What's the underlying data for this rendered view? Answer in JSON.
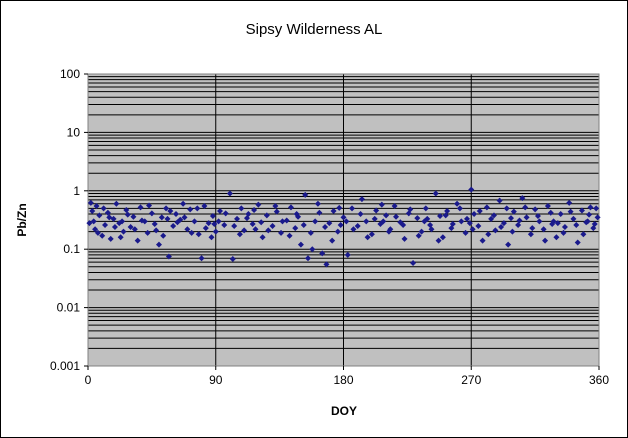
{
  "chart_data": {
    "type": "scatter",
    "title": "Sipsy Wilderness AL",
    "xlabel": "DOY",
    "ylabel": "Pb/Zn",
    "xlim": [
      0,
      360
    ],
    "ylim": [
      0.001,
      100
    ],
    "yscale": "log",
    "x_ticks": [
      "0",
      "90",
      "180",
      "270",
      "360"
    ],
    "y_ticks": [
      "0.001",
      "0.01",
      "0.1",
      "1",
      "10",
      "100"
    ],
    "grid": true,
    "legend": "none",
    "colors": {
      "marker": "#1a1a8c",
      "plot_background": "#c0c0c0",
      "gridline": "#000000"
    },
    "series": [
      {
        "points": [
          [
            2,
            0.62
          ],
          [
            3,
            0.45
          ],
          [
            4,
            0.3
          ],
          [
            5,
            0.22
          ],
          [
            6,
            0.55
          ],
          [
            8,
            0.38
          ],
          [
            10,
            0.17
          ],
          [
            12,
            0.26
          ],
          [
            14,
            0.42
          ],
          [
            16,
            0.15
          ],
          [
            18,
            0.33
          ],
          [
            20,
            0.6
          ],
          [
            22,
            0.28
          ],
          [
            25,
            0.2
          ],
          [
            27,
            0.47
          ],
          [
            30,
            0.24
          ],
          [
            32,
            0.36
          ],
          [
            35,
            0.14
          ],
          [
            37,
            0.52
          ],
          [
            40,
            0.3
          ],
          [
            42,
            0.19
          ],
          [
            45,
            0.41
          ],
          [
            47,
            0.27
          ],
          [
            50,
            0.12
          ],
          [
            52,
            0.35
          ],
          [
            55,
            0.5
          ],
          [
            57,
            0.075
          ],
          [
            60,
            0.25
          ],
          [
            62,
            0.4
          ],
          [
            65,
            0.32
          ],
          [
            67,
            0.6
          ],
          [
            70,
            0.22
          ],
          [
            72,
            0.48
          ],
          [
            75,
            0.3
          ],
          [
            78,
            0.18
          ],
          [
            80,
            0.07
          ],
          [
            82,
            0.55
          ],
          [
            85,
            0.28
          ],
          [
            88,
            0.37
          ],
          [
            90,
            0.2
          ],
          [
            93,
            0.45
          ],
          [
            96,
            0.26
          ],
          [
            100,
            0.9
          ],
          [
            102,
            0.068
          ],
          [
            105,
            0.33
          ],
          [
            108,
            0.5
          ],
          [
            110,
            0.21
          ],
          [
            113,
            0.4
          ],
          [
            116,
            0.27
          ],
          [
            120,
            0.58
          ],
          [
            123,
            0.16
          ],
          [
            126,
            0.38
          ],
          [
            130,
            0.25
          ],
          [
            133,
            0.44
          ],
          [
            136,
            0.19
          ],
          [
            140,
            0.31
          ],
          [
            143,
            0.52
          ],
          [
            146,
            0.23
          ],
          [
            150,
            0.12
          ],
          [
            153,
            0.85
          ],
          [
            155,
            0.07
          ],
          [
            158,
            0.1
          ],
          [
            160,
            0.3
          ],
          [
            162,
            0.6
          ],
          [
            165,
            0.085
          ],
          [
            168,
            0.055
          ],
          [
            170,
            0.28
          ],
          [
            173,
            0.45
          ],
          [
            176,
            0.2
          ],
          [
            180,
            0.35
          ],
          [
            183,
            0.08
          ],
          [
            186,
            0.5
          ],
          [
            190,
            0.25
          ],
          [
            193,
            0.72
          ],
          [
            196,
            0.3
          ],
          [
            200,
            0.18
          ],
          [
            203,
            0.46
          ],
          [
            206,
            0.27
          ],
          [
            210,
            0.38
          ],
          [
            213,
            0.22
          ],
          [
            216,
            0.55
          ],
          [
            220,
            0.29
          ],
          [
            223,
            0.15
          ],
          [
            226,
            0.41
          ],
          [
            229,
            0.058
          ],
          [
            232,
            0.34
          ],
          [
            235,
            0.2
          ],
          [
            238,
            0.5
          ],
          [
            241,
            0.26
          ],
          [
            245,
            0.9
          ],
          [
            248,
            0.37
          ],
          [
            250,
            0.16
          ],
          [
            253,
            0.45
          ],
          [
            256,
            0.23
          ],
          [
            260,
            0.6
          ],
          [
            263,
            0.3
          ],
          [
            266,
            0.19
          ],
          [
            270,
            1.05
          ],
          [
            272,
            0.4
          ],
          [
            275,
            0.25
          ],
          [
            278,
            0.14
          ],
          [
            281,
            0.52
          ],
          [
            284,
            0.33
          ],
          [
            287,
            0.21
          ],
          [
            290,
            0.68
          ],
          [
            293,
            0.28
          ],
          [
            296,
            0.12
          ],
          [
            300,
            0.44
          ],
          [
            303,
            0.26
          ],
          [
            306,
            0.75
          ],
          [
            309,
            0.35
          ],
          [
            312,
            0.18
          ],
          [
            315,
            0.48
          ],
          [
            318,
            0.3
          ],
          [
            321,
            0.22
          ],
          [
            324,
            0.55
          ],
          [
            327,
            0.27
          ],
          [
            330,
            0.16
          ],
          [
            333,
            0.4
          ],
          [
            336,
            0.24
          ],
          [
            339,
            0.62
          ],
          [
            342,
            0.33
          ],
          [
            345,
            0.13
          ],
          [
            348,
            0.46
          ],
          [
            351,
            0.29
          ],
          [
            354,
            0.52
          ],
          [
            356,
            0.23
          ],
          [
            358,
            0.5
          ],
          [
            359,
            0.35
          ],
          [
            1,
            0.28
          ],
          [
            7,
            0.19
          ],
          [
            11,
            0.5
          ],
          [
            15,
            0.35
          ],
          [
            19,
            0.24
          ],
          [
            23,
            0.16
          ],
          [
            28,
            0.39
          ],
          [
            33,
            0.22
          ],
          [
            38,
            0.31
          ],
          [
            43,
            0.56
          ],
          [
            48,
            0.21
          ],
          [
            53,
            0.17
          ],
          [
            58,
            0.45
          ],
          [
            63,
            0.29
          ],
          [
            68,
            0.35
          ],
          [
            73,
            0.19
          ],
          [
            77,
            0.5
          ],
          [
            83,
            0.23
          ],
          [
            87,
            0.16
          ],
          [
            92,
            0.3
          ],
          [
            97,
            0.41
          ],
          [
            103,
            0.25
          ],
          [
            107,
            0.18
          ],
          [
            112,
            0.34
          ],
          [
            117,
            0.47
          ],
          [
            122,
            0.29
          ],
          [
            127,
            0.21
          ],
          [
            132,
            0.55
          ],
          [
            137,
            0.3
          ],
          [
            142,
            0.17
          ],
          [
            147,
            0.4
          ],
          [
            152,
            0.26
          ],
          [
            157,
            0.19
          ],
          [
            163,
            0.42
          ],
          [
            167,
            0.24
          ],
          [
            172,
            0.14
          ],
          [
            177,
            0.51
          ],
          [
            182,
            0.3
          ],
          [
            187,
            0.22
          ],
          [
            192,
            0.4
          ],
          [
            197,
            0.16
          ],
          [
            202,
            0.33
          ],
          [
            207,
            0.58
          ],
          [
            212,
            0.2
          ],
          [
            217,
            0.36
          ],
          [
            222,
            0.26
          ],
          [
            227,
            0.48
          ],
          [
            233,
            0.17
          ],
          [
            237,
            0.3
          ],
          [
            242,
            0.22
          ],
          [
            247,
            0.14
          ],
          [
            252,
            0.38
          ],
          [
            257,
            0.27
          ],
          [
            262,
            0.5
          ],
          [
            267,
            0.33
          ],
          [
            271,
            0.22
          ],
          [
            276,
            0.45
          ],
          [
            282,
            0.18
          ],
          [
            286,
            0.38
          ],
          [
            291,
            0.24
          ],
          [
            295,
            0.5
          ],
          [
            299,
            0.2
          ],
          [
            304,
            0.31
          ],
          [
            308,
            0.52
          ],
          [
            313,
            0.23
          ],
          [
            317,
            0.37
          ],
          [
            322,
            0.14
          ],
          [
            326,
            0.42
          ],
          [
            331,
            0.28
          ],
          [
            335,
            0.19
          ],
          [
            340,
            0.44
          ],
          [
            344,
            0.26
          ],
          [
            349,
            0.18
          ],
          [
            353,
            0.39
          ],
          [
            357,
            0.27
          ],
          [
            24,
            0.3
          ],
          [
            56,
            0.33
          ],
          [
            89,
            0.27
          ],
          [
            118,
            0.22
          ],
          [
            148,
            0.36
          ],
          [
            178,
            0.26
          ],
          [
            208,
            0.3
          ],
          [
            239,
            0.33
          ],
          [
            269,
            0.28
          ],
          [
            298,
            0.34
          ],
          [
            328,
            0.3
          ],
          [
            352,
            0.3
          ]
        ]
      }
    ]
  }
}
